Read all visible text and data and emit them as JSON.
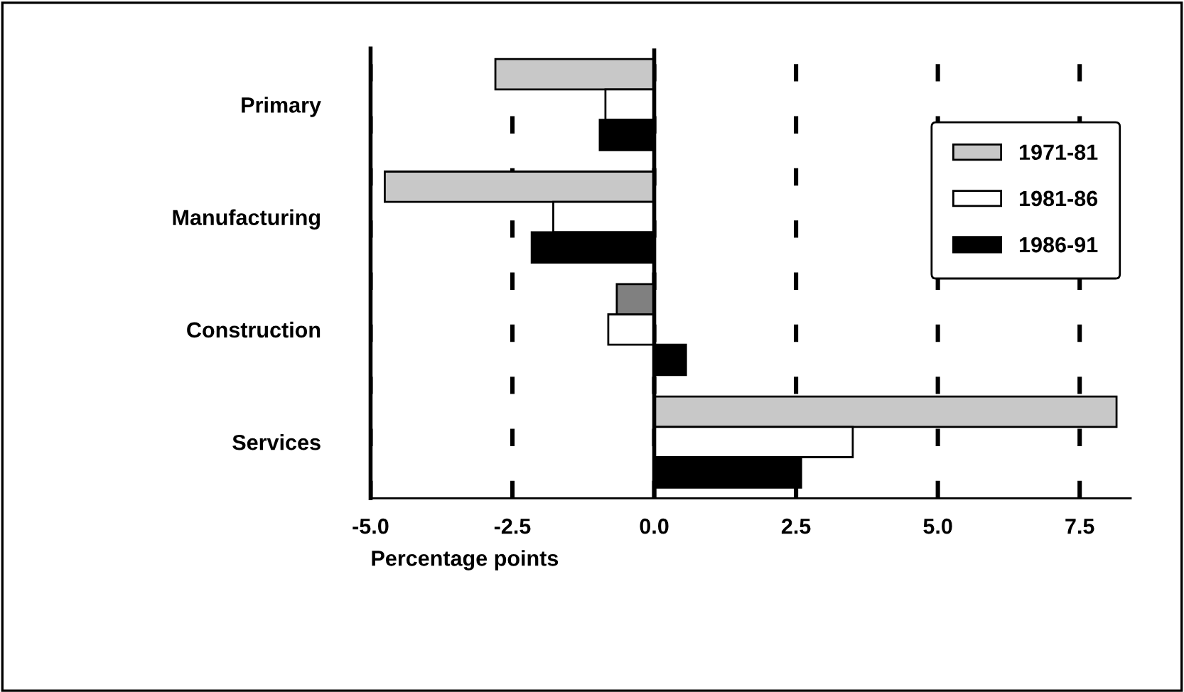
{
  "chart_data": {
    "type": "bar",
    "orientation": "horizontal",
    "xlabel": "Percentage points",
    "categories": [
      "Primary",
      "Manufacturing",
      "Construction",
      "Services"
    ],
    "series": [
      {
        "name": "1971-81",
        "color": "#c8c8c8",
        "colors": [
          "#c8c8c8",
          "#c8c8c8",
          "#808080",
          "#c8c8c8"
        ],
        "values": [
          -2.8,
          -4.75,
          -0.66,
          8.15
        ]
      },
      {
        "name": "1981-86",
        "color": "#ffffff",
        "values": [
          -0.86,
          -1.78,
          -0.81,
          3.5
        ]
      },
      {
        "name": "1986-91",
        "color": "#000000",
        "values": [
          -0.96,
          -2.16,
          0.56,
          2.59
        ]
      }
    ],
    "xlim": [
      -5,
      8.4
    ],
    "xticks": [
      {
        "value": -5,
        "label": "-5.0"
      },
      {
        "value": -2.5,
        "label": "-2.5"
      },
      {
        "value": 0,
        "label": "0.0"
      },
      2.5,
      {
        "value": 5,
        "label": "5.0"
      },
      7.5
    ],
    "ref_lines": [
      {
        "axis": "x",
        "value": 0,
        "color": "#000000",
        "line_style": "solid"
      }
    ],
    "grid": "x",
    "legend": "top right"
  }
}
